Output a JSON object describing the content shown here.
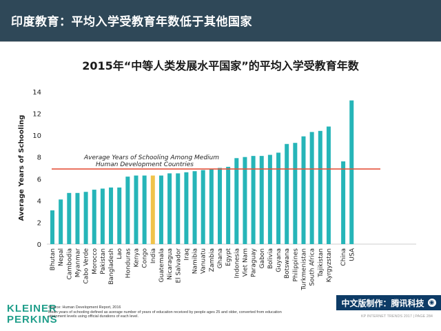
{
  "header": {
    "title": "印度教育：平均入学受教育年数低于其他国家"
  },
  "chart_data": {
    "type": "bar",
    "title": "2015年“中等人类发展水平国家”的平均入学受教育年数",
    "ylabel": "Average Years of Schooling",
    "xlabel": "",
    "ylim": [
      0,
      14
    ],
    "yticks": [
      0,
      2,
      4,
      6,
      8,
      10,
      12,
      14
    ],
    "grid": false,
    "categories": [
      "Bhutan",
      "Nepal",
      "Cambodia",
      "Myanmar",
      "Cabo Verde",
      "Morocco",
      "Pakistan",
      "Bangladesh",
      "Lao",
      "Honduras",
      "Kenya",
      "Congo",
      "India",
      "Guatemala",
      "Nicaragua",
      "El Salvador",
      "Iraq",
      "Namibia",
      "Vanuatu",
      "Zambia",
      "Ghana",
      "Egypt",
      "Indonesia",
      "Viet Nam",
      "Paraguay",
      "Gabon",
      "Bolivia",
      "Guyana",
      "Botswana",
      "Philippines",
      "Turkmenistan",
      "South Africa",
      "Tajikistan",
      "Kyrgyzstan",
      "China",
      "USA"
    ],
    "values": [
      3.1,
      4.1,
      4.7,
      4.7,
      4.8,
      5.0,
      5.1,
      5.2,
      5.2,
      6.2,
      6.3,
      6.3,
      6.3,
      6.3,
      6.5,
      6.5,
      6.6,
      6.7,
      6.8,
      6.9,
      7.0,
      7.1,
      7.9,
      8.0,
      8.1,
      8.1,
      8.2,
      8.4,
      9.2,
      9.3,
      9.9,
      10.3,
      10.4,
      10.8,
      7.6,
      13.2
    ],
    "highlight_category": "India",
    "bar_color": "#26b5b8",
    "highlight_color": "#f0c34a",
    "reference_line": {
      "value": 6.9,
      "label_line1": "Average Years of Schooling Among Medium",
      "label_line2": "Human Development Countries",
      "color": "#e5533b"
    }
  },
  "footer": {
    "logo_line1": "KLEINER",
    "logo_line2": "PERKINS",
    "source_line1": "Source: Human Development Report, 2016",
    "source_line2": "Mean years of schooling defined as average number of years of education received by people ages 25 and older, converted from education",
    "source_line3": "attainment levels using official durations of each level.",
    "badge_text": "中文版制作：腾讯科技",
    "page": "KP INTERNET TRENDS 2017  |  PAGE 284"
  }
}
